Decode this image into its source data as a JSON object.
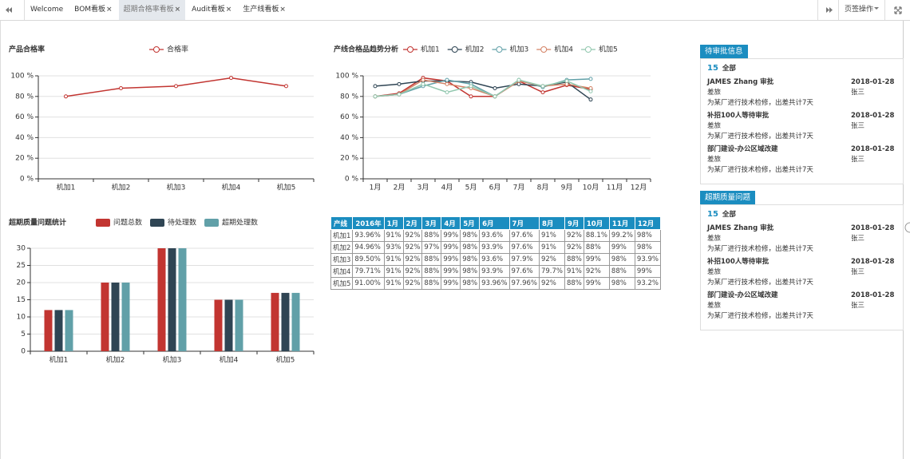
{
  "tabs": {
    "items": [
      "Welcome",
      "BOM看板",
      "超期合格率看板",
      "Audit看板",
      "生产线看板"
    ],
    "active": 2,
    "menu": "页签操作"
  },
  "chart_data": [
    {
      "type": "line",
      "title": "产品合格率",
      "categories": [
        "机加1",
        "机加2",
        "机加3",
        "机加4",
        "机加5"
      ],
      "series": [
        {
          "name": "合格率",
          "color": "#c23531",
          "values": [
            80,
            88,
            90,
            98,
            90
          ]
        }
      ],
      "ylim": [
        0,
        100
      ],
      "yticks": [
        {
          "value": 0,
          "label": "0 %"
        },
        {
          "value": 20,
          "label": "20 %"
        },
        {
          "value": 40,
          "label": "40 %"
        },
        {
          "value": 60,
          "label": "60 %"
        },
        {
          "value": 80,
          "label": "80 %"
        },
        {
          "value": 100,
          "label": "100 %"
        }
      ],
      "grid": true
    },
    {
      "type": "line",
      "title": "产线合格品趋势分析",
      "categories": [
        "1月",
        "2月",
        "3月",
        "4月",
        "5月",
        "6月",
        "7月",
        "8月",
        "9月",
        "10月",
        "11月",
        "12月"
      ],
      "series": [
        {
          "name": "机加1",
          "color": "#c23531",
          "values": [
            80,
            83,
            98,
            95,
            80,
            80,
            95,
            84,
            91,
            87,
            null,
            null
          ]
        },
        {
          "name": "机加2",
          "color": "#2f4554",
          "values": [
            90,
            92,
            95,
            95,
            94,
            88,
            92,
            90,
            94,
            77,
            null,
            null
          ]
        },
        {
          "name": "机加3",
          "color": "#61a0a8",
          "values": [
            80,
            82,
            90,
            96,
            92,
            80,
            96,
            89,
            96,
            97,
            null,
            null
          ]
        },
        {
          "name": "机加4",
          "color": "#d48265",
          "values": [
            80,
            82,
            96,
            92,
            88,
            80,
            95,
            90,
            92,
            88,
            null,
            null
          ]
        },
        {
          "name": "机加5",
          "color": "#91c7ae",
          "values": [
            80,
            82,
            92,
            84,
            90,
            80,
            96,
            90,
            95,
            85,
            null,
            null
          ]
        }
      ],
      "ylim": [
        0,
        100
      ],
      "yticks": [
        {
          "value": 0,
          "label": "0 %"
        },
        {
          "value": 20,
          "label": "20 %"
        },
        {
          "value": 40,
          "label": "40 %"
        },
        {
          "value": 60,
          "label": "60 %"
        },
        {
          "value": 80,
          "label": "80 %"
        },
        {
          "value": 100,
          "label": "100 %"
        }
      ],
      "grid": true
    },
    {
      "type": "bar",
      "title": "超期质量问题统计",
      "categories": [
        "机加1",
        "机加2",
        "机加3",
        "机加4",
        "机加5"
      ],
      "series": [
        {
          "name": "问题总数",
          "color": "#c23531",
          "values": [
            12,
            20,
            30,
            15,
            17
          ]
        },
        {
          "name": "待处理数",
          "color": "#2f4554",
          "values": [
            12,
            20,
            30,
            15,
            17
          ]
        },
        {
          "name": "超期处理数",
          "color": "#61a0a8",
          "values": [
            12,
            20,
            30,
            15,
            17
          ]
        }
      ],
      "ylim": [
        0,
        30
      ],
      "yticks": [
        0,
        5,
        10,
        15,
        20,
        25,
        30
      ],
      "grid": true
    }
  ],
  "table": {
    "header": [
      "产线",
      "2016年",
      "1月",
      "2月",
      "3月",
      "4月",
      "5月",
      "6月",
      "7月",
      "8月",
      "9月",
      "10月",
      "11月",
      "12月"
    ],
    "rows": [
      [
        "机加1",
        "93.96%",
        "91%",
        "92%",
        "88%",
        "99%",
        "98%",
        "93.6%",
        "97.6%",
        "91%",
        "92%",
        "88.1%",
        "99.2%",
        "98%"
      ],
      [
        "机加2",
        "94.96%",
        "93%",
        "92%",
        "97%",
        "99%",
        "98%",
        "93.9%",
        "97.6%",
        "91%",
        "92%",
        "88%",
        "99%",
        "98%"
      ],
      [
        "机加3",
        "89.50%",
        "91%",
        "92%",
        "88%",
        "99%",
        "98%",
        "93.6%",
        "97.9%",
        "92%",
        "88%",
        "99%",
        "98%",
        "93.9%"
      ],
      [
        "机加4",
        "79.71%",
        "91%",
        "92%",
        "88%",
        "99%",
        "98%",
        "93.9%",
        "97.6%",
        "79.7%",
        "91%",
        "92%",
        "88%",
        "99%"
      ],
      [
        "机加5",
        "91.00%",
        "91%",
        "92%",
        "88%",
        "99%",
        "98%",
        "93.96%",
        "97.96%",
        "92%",
        "88%",
        "99%",
        "98%",
        "93.2%"
      ]
    ]
  },
  "panels": [
    {
      "title": "待审批信息",
      "count": 15,
      "filter": "全部",
      "items": [
        {
          "title": "JAMES Zhang 审批",
          "date": "2018-01-28",
          "type": "差旅",
          "person": "张三",
          "desc": "为某厂进行技术检修，出差共计7天"
        },
        {
          "title": "补招100人等待审批",
          "date": "2018-01-28",
          "type": "差旅",
          "person": "张三",
          "desc": "为某厂进行技术检修，出差共计7天"
        },
        {
          "title": "部门建设-办公区域改建",
          "date": "2018-01-28",
          "type": "差旅",
          "person": "张三",
          "desc": "为某厂进行技术检修，出差共计7天"
        }
      ]
    },
    {
      "title": "超期质量问题",
      "count": 15,
      "filter": "全部",
      "items": [
        {
          "title": "JAMES Zhang 审批",
          "date": "2018-01-28",
          "type": "差旅",
          "person": "张三",
          "desc": "为某厂进行技术检修，出差共计7天"
        },
        {
          "title": "补招100人等待审批",
          "date": "2018-01-28",
          "type": "差旅",
          "person": "张三",
          "desc": "为某厂进行技术检修，出差共计7天"
        },
        {
          "title": "部门建设-办公区域改建",
          "date": "2018-01-28",
          "type": "差旅",
          "person": "张三",
          "desc": "为某厂进行技术检修，出差共计7天"
        }
      ]
    }
  ]
}
